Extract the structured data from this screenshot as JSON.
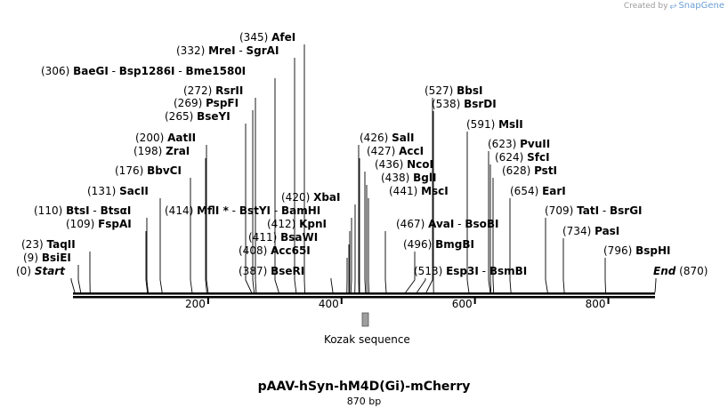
{
  "credit": {
    "text": "Created by",
    "brand": "SnapGene",
    "logo_icon": "snapgene-logo-icon"
  },
  "map_title": "pAAV-hSyn-hM4D(Gi)-mCherry",
  "map_length_label": "870 bp",
  "sequence_length": 870,
  "ruler_ticks": [
    {
      "bp": 200,
      "label": "200"
    },
    {
      "bp": 400,
      "label": "400"
    },
    {
      "bp": 600,
      "label": "600"
    },
    {
      "bp": 800,
      "label": "800"
    }
  ],
  "features": [
    {
      "name": "Kozak sequence",
      "start": 431,
      "end": 440
    }
  ],
  "sites": [
    {
      "bp": 0,
      "pos": "(0)",
      "names": [
        "Start"
      ],
      "italic": true
    },
    {
      "bp": 9,
      "pos": "(9)",
      "names": [
        "BsiEI"
      ]
    },
    {
      "bp": 23,
      "pos": "(23)",
      "names": [
        "TaqII"
      ]
    },
    {
      "bp": 109,
      "pos": "(109)",
      "names": [
        "FspAI"
      ]
    },
    {
      "bp": 110,
      "pos": "(110)",
      "names": [
        "BtsI",
        "BtsαI"
      ]
    },
    {
      "bp": 131,
      "pos": "(131)",
      "names": [
        "SacII"
      ]
    },
    {
      "bp": 176,
      "pos": "(176)",
      "names": [
        "BbvCI"
      ]
    },
    {
      "bp": 198,
      "pos": "(198)",
      "names": [
        "ZraI"
      ]
    },
    {
      "bp": 200,
      "pos": "(200)",
      "names": [
        "AatII"
      ]
    },
    {
      "bp": 265,
      "pos": "(265)",
      "names": [
        "BseYI"
      ]
    },
    {
      "bp": 269,
      "pos": "(269)",
      "names": [
        "PspFI"
      ]
    },
    {
      "bp": 272,
      "pos": "(272)",
      "names": [
        "RsrII"
      ]
    },
    {
      "bp": 306,
      "pos": "(306)",
      "names": [
        "BaeGI",
        "Bsp1286I",
        "Bme1580I"
      ]
    },
    {
      "bp": 332,
      "pos": "(332)",
      "names": [
        "MreI",
        "SgrAI"
      ]
    },
    {
      "bp": 345,
      "pos": "(345)",
      "names": [
        "AfeI"
      ]
    },
    {
      "bp": 387,
      "pos": "(387)",
      "names": [
        "BseRI"
      ]
    },
    {
      "bp": 408,
      "pos": "(408)",
      "names": [
        "Acc65I"
      ]
    },
    {
      "bp": 411,
      "pos": "(411)",
      "names": [
        "BsaWI"
      ]
    },
    {
      "bp": 412,
      "pos": "(412)",
      "names": [
        "KpnI"
      ]
    },
    {
      "bp": 414,
      "pos": "(414)",
      "names": [
        "MflI *",
        "BstYI",
        "BamHI"
      ]
    },
    {
      "bp": 420,
      "pos": "(420)",
      "names": [
        "XbaI"
      ]
    },
    {
      "bp": 426,
      "pos": "(426)",
      "names": [
        "SalI"
      ]
    },
    {
      "bp": 427,
      "pos": "(427)",
      "names": [
        "AccI"
      ]
    },
    {
      "bp": 436,
      "pos": "(436)",
      "names": [
        "NcoI"
      ]
    },
    {
      "bp": 438,
      "pos": "(438)",
      "names": [
        "BglI"
      ]
    },
    {
      "bp": 441,
      "pos": "(441)",
      "names": [
        "MscI"
      ]
    },
    {
      "bp": 467,
      "pos": "(467)",
      "names": [
        "AvaI",
        "BsoBI"
      ]
    },
    {
      "bp": 496,
      "pos": "(496)",
      "names": [
        "BmgBI"
      ]
    },
    {
      "bp": 513,
      "pos": "(513)",
      "names": [
        "Esp3I",
        "BsmBI"
      ]
    },
    {
      "bp": 527,
      "pos": "(527)",
      "names": [
        "BbsI"
      ]
    },
    {
      "bp": 538,
      "pos": "(538)",
      "names": [
        "BsrDI"
      ]
    },
    {
      "bp": 591,
      "pos": "(591)",
      "names": [
        "MslI"
      ]
    },
    {
      "bp": 623,
      "pos": "(623)",
      "names": [
        "PvuII"
      ]
    },
    {
      "bp": 624,
      "pos": "(624)",
      "names": [
        "SfcI"
      ]
    },
    {
      "bp": 628,
      "pos": "(628)",
      "names": [
        "PstI"
      ]
    },
    {
      "bp": 654,
      "pos": "(654)",
      "names": [
        "EarI"
      ]
    },
    {
      "bp": 709,
      "pos": "(709)",
      "names": [
        "TatI",
        "BsrGI"
      ]
    },
    {
      "bp": 734,
      "pos": "(734)",
      "names": [
        "PasI"
      ]
    },
    {
      "bp": 796,
      "pos": "(796)",
      "names": [
        "BspHI"
      ]
    },
    {
      "bp": 870,
      "pos": "(870)",
      "names": [
        "End"
      ],
      "italic": true
    }
  ]
}
